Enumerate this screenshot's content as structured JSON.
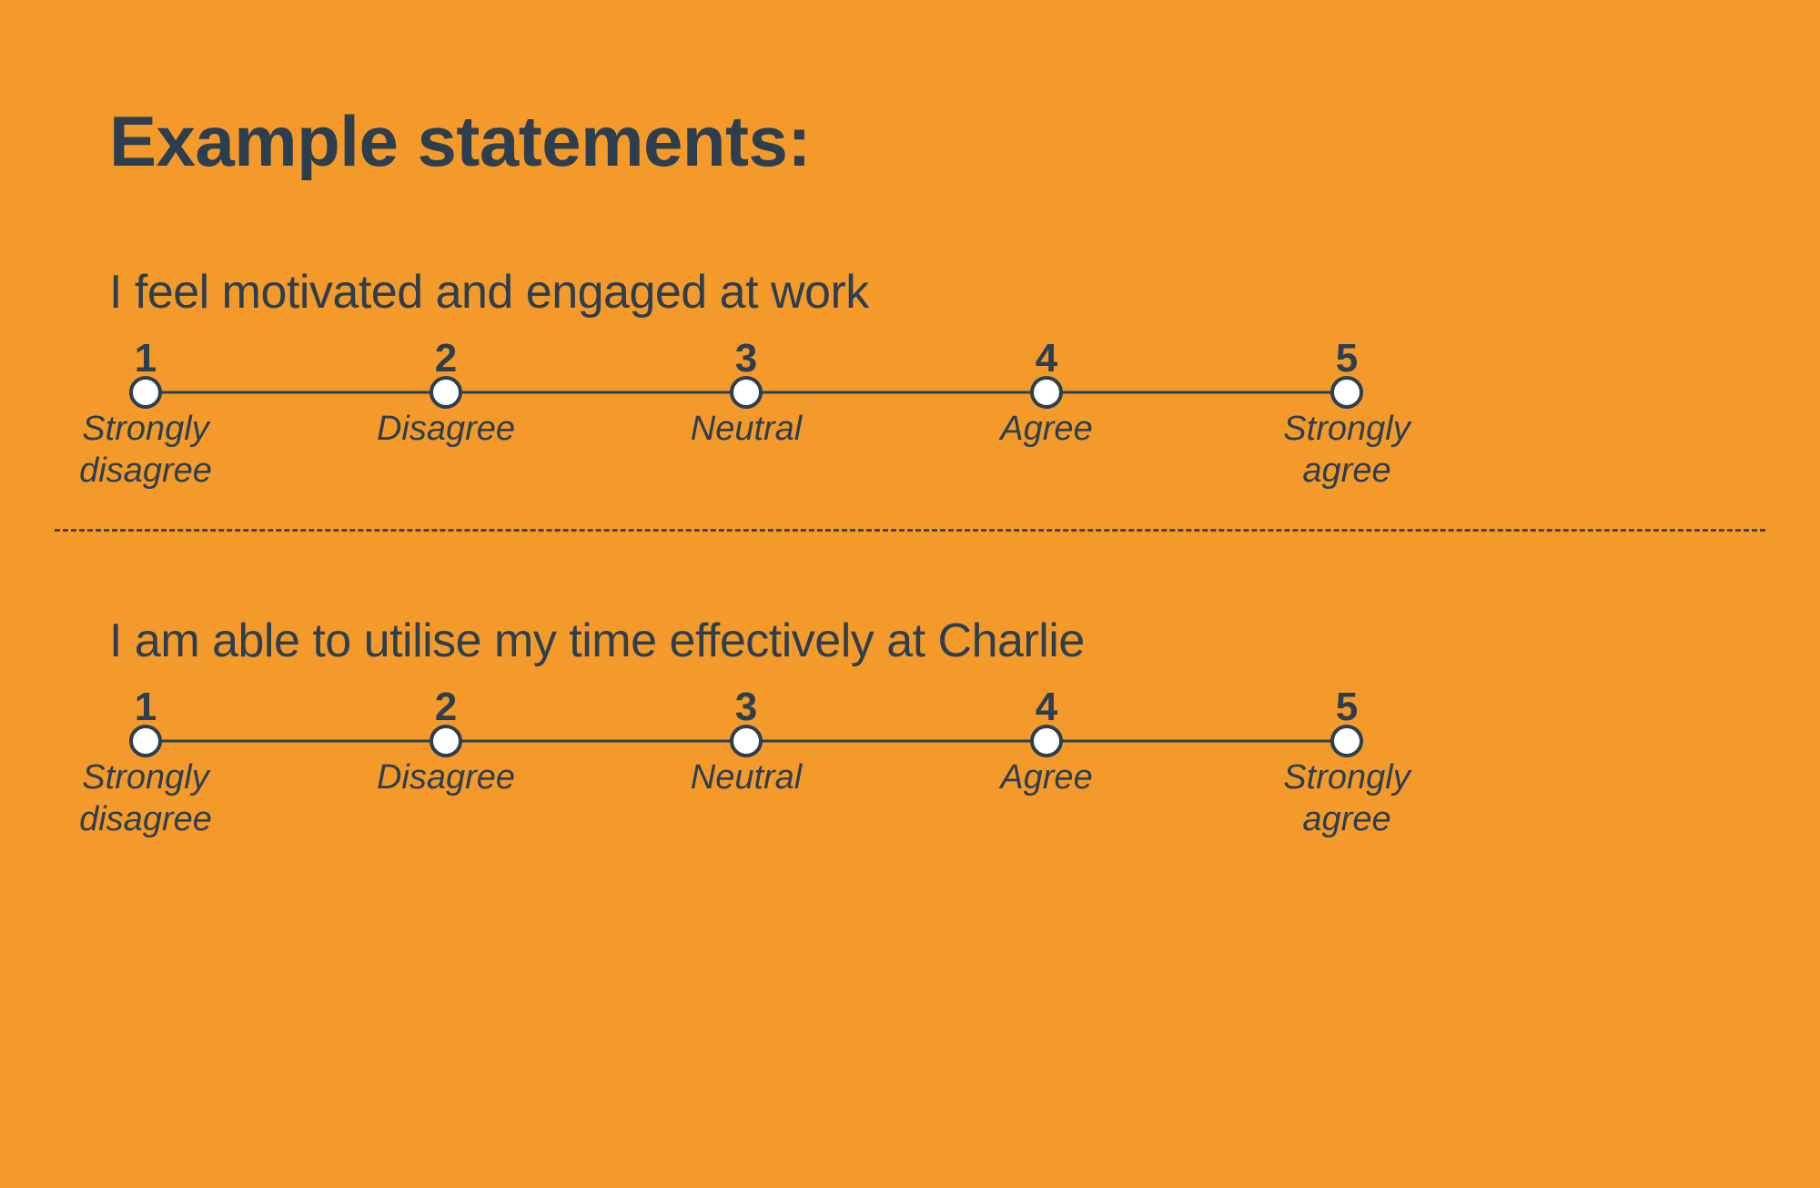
{
  "colors": {
    "background": "#f39a2a",
    "foreground": "#2d3e4f",
    "dot_fill": "#ffffff"
  },
  "heading": "Example statements:",
  "scale": {
    "points": [
      {
        "num": "1",
        "label": "Strongly disagree",
        "twoLine": true
      },
      {
        "num": "2",
        "label": "Disagree",
        "twoLine": false
      },
      {
        "num": "3",
        "label": "Neutral",
        "twoLine": false
      },
      {
        "num": "4",
        "label": "Agree",
        "twoLine": false
      },
      {
        "num": "5",
        "label": "Strongly agree",
        "twoLine": true
      }
    ]
  },
  "statements": [
    {
      "text": "I feel motivated and engaged at work"
    },
    {
      "text": "I am able to utilise my time effectively at Charlie"
    }
  ]
}
